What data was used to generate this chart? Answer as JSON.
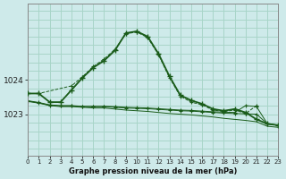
{
  "title": "Graphe pression niveau de la mer (hPa)",
  "background_color": "#ceeaea",
  "grid_color": "#a8d5c8",
  "line_color": "#1a5c1a",
  "x_ticks": [
    0,
    1,
    2,
    3,
    4,
    5,
    6,
    7,
    8,
    9,
    10,
    11,
    12,
    13,
    14,
    15,
    16,
    17,
    18,
    19,
    20,
    21,
    22,
    23
  ],
  "y_ticks": [
    1023,
    1024
  ],
  "ylim": [
    1021.8,
    1026.2
  ],
  "xlim": [
    0,
    23
  ],
  "series1": {
    "x": [
      0,
      1,
      2,
      3,
      4,
      5,
      6,
      7,
      8,
      9,
      10,
      11,
      12,
      13,
      14,
      15,
      16,
      17,
      18,
      19,
      20,
      21,
      22,
      23
    ],
    "y": [
      1023.6,
      1023.6,
      1023.35,
      1023.35,
      1023.7,
      1024.05,
      1024.35,
      1024.55,
      1024.85,
      1025.35,
      1025.4,
      1025.25,
      1024.75,
      1024.1,
      1023.55,
      1023.4,
      1023.3,
      1023.15,
      1023.1,
      1023.15,
      1023.05,
      1022.85,
      1022.72,
      1022.68
    ]
  },
  "series2": {
    "x": [
      0,
      1,
      2,
      3,
      4,
      5,
      6,
      7,
      8,
      9,
      10,
      11,
      12,
      13,
      14,
      15,
      16,
      17,
      18,
      19,
      20,
      21,
      22,
      23
    ],
    "y": [
      1023.37,
      1023.32,
      1023.25,
      1023.22,
      1023.22,
      1023.2,
      1023.18,
      1023.18,
      1023.15,
      1023.12,
      1023.1,
      1023.08,
      1023.05,
      1023.02,
      1023.0,
      1022.98,
      1022.95,
      1022.92,
      1022.88,
      1022.85,
      1022.82,
      1022.78,
      1022.65,
      1022.62
    ]
  },
  "series3": {
    "x": [
      0,
      1,
      2,
      3,
      4,
      5,
      6,
      7,
      8,
      9,
      10,
      11,
      12,
      13,
      14,
      15,
      16,
      17,
      18,
      19,
      20,
      21,
      22,
      23
    ],
    "y": [
      1023.38,
      1023.33,
      1023.26,
      1023.24,
      1023.24,
      1023.22,
      1023.22,
      1023.22,
      1023.2,
      1023.18,
      1023.17,
      1023.16,
      1023.14,
      1023.12,
      1023.1,
      1023.09,
      1023.07,
      1023.05,
      1023.03,
      1023.02,
      1023.01,
      1023.0,
      1022.72,
      1022.68
    ]
  },
  "series4": {
    "x": [
      0,
      1,
      2,
      3,
      4,
      5,
      6,
      7,
      8,
      9,
      10,
      11,
      12,
      13,
      14,
      15,
      16,
      17,
      18,
      19,
      20,
      21,
      22,
      23
    ],
    "y": [
      1023.39,
      1023.34,
      1023.27,
      1023.25,
      1023.25,
      1023.23,
      1023.23,
      1023.23,
      1023.22,
      1023.2,
      1023.19,
      1023.18,
      1023.16,
      1023.14,
      1023.12,
      1023.11,
      1023.09,
      1023.07,
      1023.06,
      1023.05,
      1023.25,
      1023.22,
      1022.72,
      1022.68
    ]
  },
  "series5": {
    "x": [
      0,
      1,
      4,
      5,
      6,
      7,
      8,
      9,
      10,
      11,
      12,
      13,
      14,
      15,
      16,
      17,
      18,
      19,
      20,
      21
    ],
    "y": [
      1023.6,
      1023.6,
      1023.82,
      1024.08,
      1024.38,
      1024.6,
      1024.88,
      1025.33,
      1025.38,
      1025.22,
      1024.72,
      1024.06,
      1023.52,
      1023.35,
      1023.27,
      1023.12,
      1023.08,
      1023.12,
      1023.02,
      1023.25
    ]
  }
}
